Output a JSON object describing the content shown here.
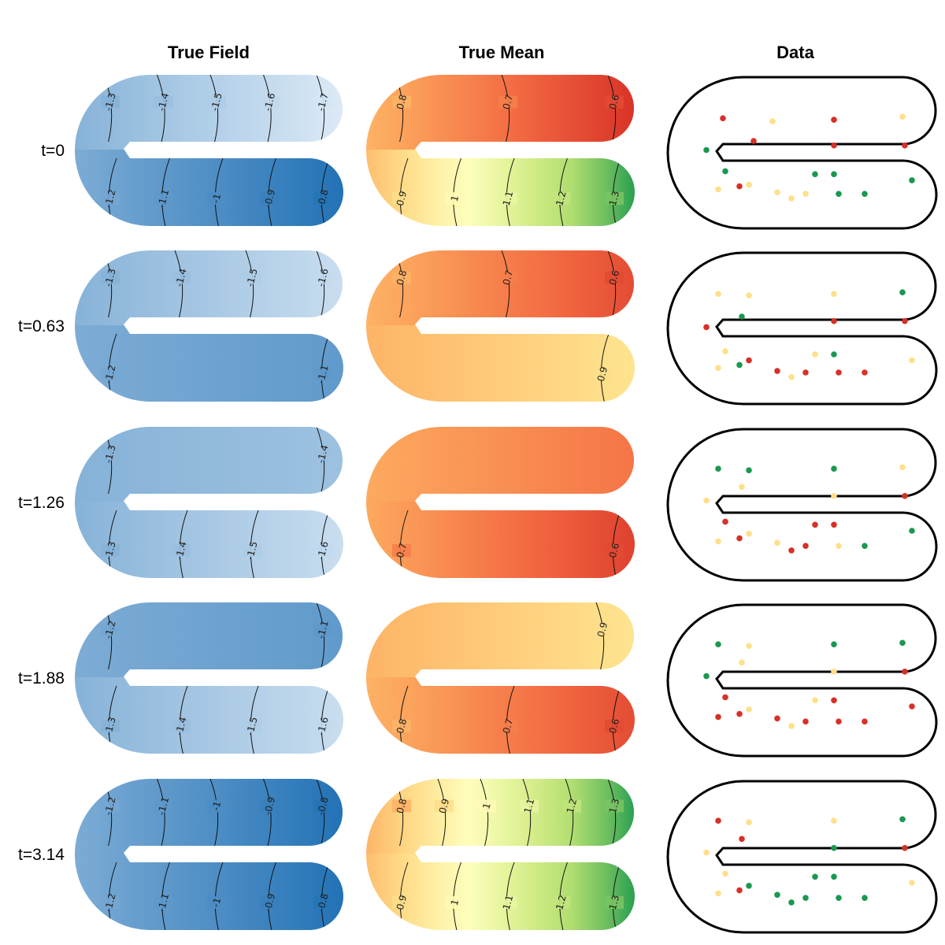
{
  "chart_data": {
    "type": "heatmap",
    "column_titles": [
      "True Field",
      "True Mean",
      "Data"
    ],
    "row_labels": [
      "t=0",
      "t=0.63",
      "t=1.26",
      "t=1.88",
      "t=3.14"
    ],
    "colors": {
      "field_low": "#deebf7",
      "field_high": "#2171b5",
      "mean_scale": [
        "#d73027",
        "#f46d43",
        "#fdae61",
        "#fee08b",
        "#ffffbf",
        "#d9ef8b",
        "#a6d96a",
        "#1a9850"
      ],
      "data_red": "#d73027",
      "data_yellow": "#fee08b",
      "data_green": "#1a9850"
    },
    "panels": [
      {
        "time": "t=0",
        "true_field": {
          "upper": {
            "x_start": -1.3,
            "x_end": -1.75,
            "contours": [
              "-1.3",
              "-1.4",
              "-1.5",
              "-1.6",
              "-1.7"
            ]
          },
          "lower": {
            "x_start": -1.25,
            "x_end": -0.78,
            "contours": [
              "-1.2",
              "-1.1",
              "-1",
              "-0.9",
              "-0.8"
            ]
          }
        },
        "true_mean": {
          "upper": {
            "x_start": 0.8,
            "x_end": 0.55,
            "contours": [
              "0.8",
              "0.7",
              "0.6"
            ]
          },
          "lower": {
            "x_start": 0.82,
            "x_end": 1.38,
            "contours": [
              "0.9",
              "1",
              "1.1",
              "1.2",
              "1.3"
            ]
          }
        },
        "data": {
          "observations": [
            {
              "x": 1.5,
              "y": 7.7,
              "level": "red"
            },
            {
              "x": 3.6,
              "y": 7.5,
              "level": "yellow"
            },
            {
              "x": 6.2,
              "y": 7.6,
              "level": "red"
            },
            {
              "x": 9.1,
              "y": 7.8,
              "level": "yellow"
            },
            {
              "x": 2.8,
              "y": 6.2,
              "level": "red"
            },
            {
              "x": 6.2,
              "y": 5.9,
              "level": "red"
            },
            {
              "x": 9.2,
              "y": 5.9,
              "level": "red"
            },
            {
              "x": 0.8,
              "y": 5.6,
              "level": "green"
            },
            {
              "x": 1.6,
              "y": 4.2,
              "level": "green"
            },
            {
              "x": 5.4,
              "y": 4.0,
              "level": "green"
            },
            {
              "x": 6.2,
              "y": 4.0,
              "level": "green"
            },
            {
              "x": 9.5,
              "y": 3.6,
              "level": "green"
            },
            {
              "x": 2.6,
              "y": 3.3,
              "level": "yellow"
            },
            {
              "x": 1.3,
              "y": 3.0,
              "level": "yellow"
            },
            {
              "x": 2.2,
              "y": 3.2,
              "level": "red"
            },
            {
              "x": 3.8,
              "y": 2.8,
              "level": "yellow"
            },
            {
              "x": 4.4,
              "y": 2.4,
              "level": "yellow"
            },
            {
              "x": 5.0,
              "y": 2.7,
              "level": "yellow"
            },
            {
              "x": 6.4,
              "y": 2.7,
              "level": "green"
            },
            {
              "x": 7.5,
              "y": 2.7,
              "level": "green"
            }
          ]
        }
      },
      {
        "time": "t=0.63",
        "true_field": {
          "upper": {
            "x_start": -1.3,
            "x_end": -1.65,
            "contours": [
              "-1.3",
              "-1.4",
              "-1.5",
              "-1.6"
            ]
          },
          "lower": {
            "x_start": -1.25,
            "x_end": -1.1,
            "contours": [
              "-1.2",
              "-1.1"
            ]
          }
        },
        "true_mean": {
          "upper": {
            "x_start": 0.8,
            "x_end": 0.6,
            "contours": [
              "0.8",
              "0.7",
              "0.6"
            ]
          },
          "lower": {
            "x_start": 0.8,
            "x_end": 0.92,
            "contours": [
              "0.9"
            ]
          }
        },
        "data": {
          "observations": [
            {
              "x": 1.3,
              "y": 7.7,
              "level": "yellow"
            },
            {
              "x": 2.6,
              "y": 7.6,
              "level": "yellow"
            },
            {
              "x": 6.2,
              "y": 7.7,
              "level": "yellow"
            },
            {
              "x": 9.1,
              "y": 7.8,
              "level": "green"
            },
            {
              "x": 2.3,
              "y": 6.2,
              "level": "green"
            },
            {
              "x": 6.2,
              "y": 5.9,
              "level": "red"
            },
            {
              "x": 9.2,
              "y": 5.9,
              "level": "red"
            },
            {
              "x": 0.8,
              "y": 5.5,
              "level": "red"
            },
            {
              "x": 1.6,
              "y": 3.9,
              "level": "yellow"
            },
            {
              "x": 5.4,
              "y": 3.7,
              "level": "yellow"
            },
            {
              "x": 6.2,
              "y": 3.7,
              "level": "green"
            },
            {
              "x": 9.5,
              "y": 3.3,
              "level": "yellow"
            },
            {
              "x": 2.6,
              "y": 3.3,
              "level": "red"
            },
            {
              "x": 1.3,
              "y": 2.8,
              "level": "yellow"
            },
            {
              "x": 2.2,
              "y": 3.0,
              "level": "green"
            },
            {
              "x": 3.8,
              "y": 2.6,
              "level": "red"
            },
            {
              "x": 4.4,
              "y": 2.2,
              "level": "yellow"
            },
            {
              "x": 5.0,
              "y": 2.5,
              "level": "red"
            },
            {
              "x": 6.4,
              "y": 2.5,
              "level": "red"
            },
            {
              "x": 7.5,
              "y": 2.5,
              "level": "red"
            }
          ]
        }
      },
      {
        "time": "t=1.26",
        "true_field": {
          "upper": {
            "x_start": -1.3,
            "x_end": -1.42,
            "contours": [
              "-1.3",
              "-1.4"
            ]
          },
          "lower": {
            "x_start": -1.3,
            "x_end": -1.65,
            "contours": [
              "-1.3",
              "-1.4",
              "-1.5",
              "-1.6"
            ]
          }
        },
        "true_mean": {
          "upper": {
            "x_start": 0.78,
            "x_end": 0.68,
            "contours": []
          },
          "lower": {
            "x_start": 0.78,
            "x_end": 0.58,
            "contours": [
              "0.7",
              "0.6"
            ]
          }
        },
        "data": {
          "observations": [
            {
              "x": 1.3,
              "y": 7.8,
              "level": "green"
            },
            {
              "x": 2.6,
              "y": 7.7,
              "level": "green"
            },
            {
              "x": 6.2,
              "y": 7.8,
              "level": "green"
            },
            {
              "x": 9.1,
              "y": 7.9,
              "level": "yellow"
            },
            {
              "x": 2.3,
              "y": 6.6,
              "level": "yellow"
            },
            {
              "x": 6.2,
              "y": 6.0,
              "level": "yellow"
            },
            {
              "x": 9.2,
              "y": 6.0,
              "level": "red"
            },
            {
              "x": 0.8,
              "y": 5.7,
              "level": "yellow"
            },
            {
              "x": 1.6,
              "y": 4.3,
              "level": "red"
            },
            {
              "x": 5.4,
              "y": 4.1,
              "level": "red"
            },
            {
              "x": 6.2,
              "y": 4.1,
              "level": "red"
            },
            {
              "x": 9.5,
              "y": 3.7,
              "level": "green"
            },
            {
              "x": 2.6,
              "y": 3.5,
              "level": "yellow"
            },
            {
              "x": 1.3,
              "y": 3.0,
              "level": "yellow"
            },
            {
              "x": 2.2,
              "y": 3.2,
              "level": "red"
            },
            {
              "x": 3.8,
              "y": 2.9,
              "level": "yellow"
            },
            {
              "x": 4.4,
              "y": 2.4,
              "level": "red"
            },
            {
              "x": 5.0,
              "y": 2.7,
              "level": "red"
            },
            {
              "x": 6.4,
              "y": 2.7,
              "level": "yellow"
            },
            {
              "x": 7.5,
              "y": 2.7,
              "level": "green"
            }
          ]
        }
      },
      {
        "time": "t=1.88",
        "true_field": {
          "upper": {
            "x_start": -1.25,
            "x_end": -1.1,
            "contours": [
              "-1.2",
              "-1.1"
            ]
          },
          "lower": {
            "x_start": -1.3,
            "x_end": -1.65,
            "contours": [
              "-1.3",
              "-1.4",
              "-1.5",
              "-1.6"
            ]
          }
        },
        "true_mean": {
          "upper": {
            "x_start": 0.8,
            "x_end": 0.92,
            "contours": [
              "0.9"
            ]
          },
          "lower": {
            "x_start": 0.8,
            "x_end": 0.6,
            "contours": [
              "0.8",
              "0.7",
              "0.6"
            ]
          }
        },
        "data": {
          "observations": [
            {
              "x": 1.3,
              "y": 7.8,
              "level": "green"
            },
            {
              "x": 2.6,
              "y": 7.7,
              "level": "yellow"
            },
            {
              "x": 6.2,
              "y": 7.8,
              "level": "green"
            },
            {
              "x": 9.1,
              "y": 7.9,
              "level": "green"
            },
            {
              "x": 2.3,
              "y": 6.6,
              "level": "yellow"
            },
            {
              "x": 6.2,
              "y": 6.0,
              "level": "yellow"
            },
            {
              "x": 9.2,
              "y": 6.0,
              "level": "red"
            },
            {
              "x": 0.8,
              "y": 5.7,
              "level": "green"
            },
            {
              "x": 1.6,
              "y": 4.3,
              "level": "red"
            },
            {
              "x": 5.4,
              "y": 4.1,
              "level": "yellow"
            },
            {
              "x": 6.2,
              "y": 4.1,
              "level": "red"
            },
            {
              "x": 9.5,
              "y": 3.7,
              "level": "red"
            },
            {
              "x": 2.6,
              "y": 3.5,
              "level": "yellow"
            },
            {
              "x": 1.3,
              "y": 3.0,
              "level": "red"
            },
            {
              "x": 2.2,
              "y": 3.2,
              "level": "red"
            },
            {
              "x": 3.8,
              "y": 2.9,
              "level": "red"
            },
            {
              "x": 4.4,
              "y": 2.4,
              "level": "yellow"
            },
            {
              "x": 5.0,
              "y": 2.7,
              "level": "red"
            },
            {
              "x": 6.4,
              "y": 2.7,
              "level": "red"
            },
            {
              "x": 7.5,
              "y": 2.7,
              "level": "red"
            }
          ]
        }
      },
      {
        "time": "t=3.14",
        "true_field": {
          "upper": {
            "x_start": -1.25,
            "x_end": -0.78,
            "contours": [
              "-1.2",
              "-1.1",
              "-1",
              "-0.9",
              "-0.8"
            ]
          },
          "lower": {
            "x_start": -1.25,
            "x_end": -0.78,
            "contours": [
              "-1.2",
              "-1.1",
              "-1",
              "-0.9",
              "-0.8"
            ]
          }
        },
        "true_mean": {
          "upper": {
            "x_start": 0.8,
            "x_end": 1.38,
            "contours": [
              "0.8",
              "0.9",
              "1",
              "1.1",
              "1.2",
              "1.3"
            ]
          },
          "lower": {
            "x_start": 0.82,
            "x_end": 1.38,
            "contours": [
              "0.9",
              "1",
              "1.1",
              "1.2",
              "1.3"
            ]
          }
        },
        "data": {
          "observations": [
            {
              "x": 1.3,
              "y": 7.8,
              "level": "red"
            },
            {
              "x": 2.6,
              "y": 7.7,
              "level": "yellow"
            },
            {
              "x": 6.2,
              "y": 7.8,
              "level": "yellow"
            },
            {
              "x": 9.1,
              "y": 7.9,
              "level": "green"
            },
            {
              "x": 2.3,
              "y": 6.6,
              "level": "red"
            },
            {
              "x": 6.2,
              "y": 6.0,
              "level": "green"
            },
            {
              "x": 9.2,
              "y": 6.0,
              "level": "red"
            },
            {
              "x": 0.8,
              "y": 5.7,
              "level": "yellow"
            },
            {
              "x": 1.6,
              "y": 4.3,
              "level": "yellow"
            },
            {
              "x": 5.4,
              "y": 4.1,
              "level": "green"
            },
            {
              "x": 6.2,
              "y": 4.1,
              "level": "green"
            },
            {
              "x": 9.5,
              "y": 3.7,
              "level": "yellow"
            },
            {
              "x": 2.6,
              "y": 3.5,
              "level": "green"
            },
            {
              "x": 1.3,
              "y": 3.0,
              "level": "yellow"
            },
            {
              "x": 2.2,
              "y": 3.2,
              "level": "red"
            },
            {
              "x": 3.8,
              "y": 2.9,
              "level": "green"
            },
            {
              "x": 4.4,
              "y": 2.4,
              "level": "green"
            },
            {
              "x": 5.0,
              "y": 2.7,
              "level": "green"
            },
            {
              "x": 6.4,
              "y": 2.7,
              "level": "green"
            },
            {
              "x": 7.5,
              "y": 2.7,
              "level": "green"
            }
          ]
        }
      }
    ]
  }
}
